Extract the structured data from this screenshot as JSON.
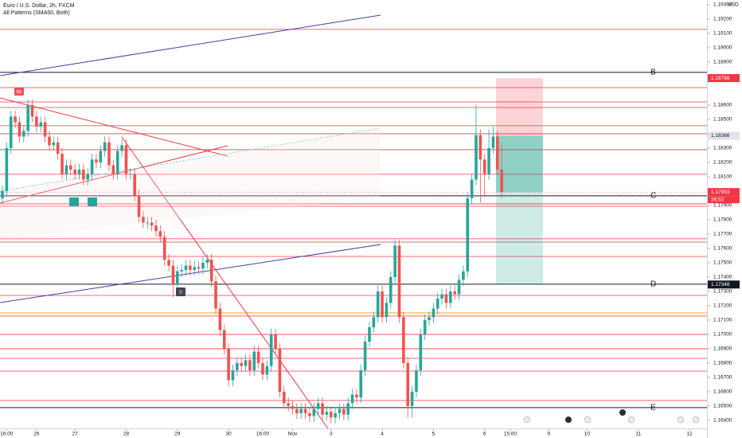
{
  "chart_data": {
    "type": "candlestick",
    "title": "Euro / U.S. Dollar, 2h, FXCM",
    "subtitle": "All Patterns (SMA50, Both)",
    "y_unit": "USD",
    "up_color": "#26a69a",
    "down_color": "#ef5350",
    "open": [
      1.1795,
      1.18,
      1.183,
      1.1852,
      1.1848,
      1.1838,
      1.1842,
      1.186,
      1.1852,
      1.1845,
      1.1848,
      1.1838,
      1.1832,
      1.1834,
      1.1826,
      1.1812,
      1.1818,
      1.1815,
      1.1812,
      1.1815,
      1.1808,
      1.1812,
      1.1822,
      1.182,
      1.1828,
      1.1834,
      1.1818,
      1.1812,
      1.1828,
      1.1832,
      1.1812,
      1.1812,
      1.1797,
      1.1782,
      1.1778,
      1.1778,
      1.1776,
      1.1772,
      1.1768,
      1.1752,
      1.1748,
      1.1735,
      1.1744,
      1.1745,
      1.1748,
      1.1745,
      1.1747,
      1.1746,
      1.175,
      1.1752,
      1.1737,
      1.1718,
      1.1703,
      1.169,
      1.1668,
      1.1675,
      1.168,
      1.1678,
      1.1682,
      1.1675,
      1.1688,
      1.168,
      1.1672,
      1.1678,
      1.17,
      1.169,
      1.166,
      1.1652,
      1.165,
      1.1648,
      1.1645,
      1.1648,
      1.1645,
      1.1643,
      1.1648,
      1.1652,
      1.1644,
      1.1646,
      1.1642,
      1.1645,
      1.1648,
      1.1644,
      1.1652,
      1.1658,
      1.1656,
      1.1675,
      1.1695,
      1.1705,
      1.1712,
      1.173,
      1.1712,
      1.1722,
      1.174,
      1.1762,
      1.1712,
      1.168,
      1.165,
      1.166,
      1.1675,
      1.17,
      1.171,
      1.1712,
      1.1718,
      1.1725,
      1.1728,
      1.1722,
      1.173,
      1.1728,
      1.1738,
      1.1744,
      1.1795,
      1.1808,
      1.1839,
      1.1822,
      1.1812,
      1.183,
      1.1838,
      1.1815
    ],
    "high": [
      1.1804,
      1.1834,
      1.1856,
      1.1856,
      1.1852,
      1.1846,
      1.1864,
      1.1864,
      1.1856,
      1.1852,
      1.1852,
      1.1842,
      1.1838,
      1.1838,
      1.183,
      1.1822,
      1.1822,
      1.1819,
      1.1819,
      1.1819,
      1.1816,
      1.1826,
      1.1826,
      1.1832,
      1.1838,
      1.1838,
      1.1822,
      1.1832,
      1.1836,
      1.1836,
      1.1816,
      1.1816,
      1.1801,
      1.1786,
      1.1782,
      1.1782,
      1.178,
      1.1776,
      1.1772,
      1.1756,
      1.1752,
      1.1748,
      1.1749,
      1.1752,
      1.1752,
      1.1751,
      1.1751,
      1.1754,
      1.1756,
      1.1756,
      1.1741,
      1.1722,
      1.1707,
      1.1694,
      1.1679,
      1.1684,
      1.1684,
      1.1686,
      1.1686,
      1.1692,
      1.1692,
      1.1684,
      1.1682,
      1.1704,
      1.1704,
      1.1694,
      1.1664,
      1.1656,
      1.1654,
      1.1652,
      1.1652,
      1.1652,
      1.1649,
      1.1652,
      1.1656,
      1.1656,
      1.165,
      1.165,
      1.1649,
      1.1652,
      1.1652,
      1.1656,
      1.1662,
      1.1662,
      1.1679,
      1.1699,
      1.1709,
      1.1716,
      1.1734,
      1.1734,
      1.1726,
      1.1744,
      1.1766,
      1.1766,
      1.1716,
      1.1684,
      1.1664,
      1.1679,
      1.1704,
      1.1714,
      1.1716,
      1.1722,
      1.1729,
      1.1732,
      1.1732,
      1.1734,
      1.1734,
      1.1742,
      1.1748,
      1.1799,
      1.1812,
      1.186,
      1.1843,
      1.1826,
      1.1843,
      1.1845,
      1.1842,
      1.1834
    ],
    "low": [
      1.1791,
      1.1796,
      1.1826,
      1.1844,
      1.1834,
      1.1834,
      1.1838,
      1.1848,
      1.1841,
      1.1841,
      1.1834,
      1.1828,
      1.1828,
      1.1822,
      1.1808,
      1.1808,
      1.1811,
      1.1808,
      1.1808,
      1.1804,
      1.1804,
      1.1808,
      1.1816,
      1.1816,
      1.1824,
      1.1814,
      1.1808,
      1.1808,
      1.1824,
      1.1808,
      1.1808,
      1.1793,
      1.1778,
      1.1774,
      1.1774,
      1.1772,
      1.1768,
      1.1764,
      1.1748,
      1.1744,
      1.1726,
      1.1731,
      1.174,
      1.1741,
      1.1741,
      1.1741,
      1.1742,
      1.1742,
      1.1746,
      1.1733,
      1.1714,
      1.1699,
      1.1686,
      1.1664,
      1.1664,
      1.1671,
      1.1674,
      1.1674,
      1.1671,
      1.1671,
      1.1676,
      1.1668,
      1.1668,
      1.1674,
      1.1686,
      1.1656,
      1.1648,
      1.1646,
      1.1644,
      1.1641,
      1.1641,
      1.1641,
      1.1639,
      1.1639,
      1.1644,
      1.164,
      1.164,
      1.1638,
      1.1638,
      1.1641,
      1.164,
      1.164,
      1.1648,
      1.1652,
      1.1652,
      1.1671,
      1.1691,
      1.1701,
      1.1708,
      1.1708,
      1.1708,
      1.1718,
      1.1736,
      1.1708,
      1.1676,
      1.1642,
      1.1642,
      1.1656,
      1.1671,
      1.1696,
      1.1706,
      1.1708,
      1.1714,
      1.1721,
      1.1718,
      1.1718,
      1.1724,
      1.1724,
      1.1734,
      1.174,
      1.1791,
      1.1804,
      1.1792,
      1.1796,
      1.1808,
      1.1826,
      1.1811,
      1.1795
    ],
    "close": [
      1.18,
      1.183,
      1.1852,
      1.1848,
      1.1838,
      1.1842,
      1.186,
      1.1852,
      1.1845,
      1.1848,
      1.1838,
      1.1832,
      1.1834,
      1.1826,
      1.1812,
      1.1818,
      1.1815,
      1.1812,
      1.1815,
      1.1808,
      1.1812,
      1.1822,
      1.182,
      1.1828,
      1.1834,
      1.1818,
      1.1812,
      1.1828,
      1.1832,
      1.1812,
      1.1812,
      1.1797,
      1.1782,
      1.1778,
      1.1778,
      1.1776,
      1.1772,
      1.1768,
      1.1752,
      1.1748,
      1.1735,
      1.1744,
      1.1745,
      1.1748,
      1.1745,
      1.1747,
      1.1746,
      1.175,
      1.1752,
      1.1737,
      1.1718,
      1.1703,
      1.169,
      1.1668,
      1.1675,
      1.168,
      1.1678,
      1.1682,
      1.1675,
      1.1688,
      1.168,
      1.1672,
      1.1678,
      1.17,
      1.169,
      1.166,
      1.1652,
      1.165,
      1.1648,
      1.1645,
      1.1648,
      1.1645,
      1.1643,
      1.1648,
      1.1652,
      1.1644,
      1.1646,
      1.1642,
      1.1645,
      1.1648,
      1.1644,
      1.1652,
      1.1658,
      1.1656,
      1.1675,
      1.1695,
      1.1705,
      1.1712,
      1.173,
      1.1712,
      1.1722,
      1.174,
      1.1762,
      1.1712,
      1.168,
      1.165,
      1.166,
      1.1675,
      1.17,
      1.171,
      1.1712,
      1.1718,
      1.1725,
      1.1728,
      1.1722,
      1.173,
      1.1728,
      1.1738,
      1.1744,
      1.1795,
      1.1808,
      1.1839,
      1.1822,
      1.1812,
      1.183,
      1.1838,
      1.1815,
      1.17993
    ],
    "xlim": [
      -0.56,
      165.1
    ],
    "xticks": [
      {
        "value": 1,
        "label": "16:00"
      },
      {
        "value": 8,
        "label": "26"
      },
      {
        "value": 17,
        "label": "27"
      },
      {
        "value": 29,
        "label": "28"
      },
      {
        "value": 41,
        "label": "29"
      },
      {
        "value": 53,
        "label": "30"
      },
      {
        "value": 61,
        "label": "16:00"
      },
      {
        "value": 68,
        "label": "Nov"
      },
      {
        "value": 77,
        "label": "3"
      },
      {
        "value": 89,
        "label": "4"
      },
      {
        "value": 101,
        "label": "5"
      },
      {
        "value": 113,
        "label": "6"
      },
      {
        "value": 119,
        "label": "15:00"
      },
      {
        "value": 128,
        "label": "9"
      },
      {
        "value": 137,
        "label": "10"
      },
      {
        "value": 149,
        "label": "11"
      },
      {
        "value": 161,
        "label": "12"
      }
    ],
    "ylim": [
      1.16344,
      1.19333
    ],
    "yticks": [
      {
        "value": 1.193,
        "label": "1.19300"
      },
      {
        "value": 1.192,
        "label": "1.19200"
      },
      {
        "value": 1.191,
        "label": "1.19100"
      },
      {
        "value": 1.19,
        "label": "1.19000"
      },
      {
        "value": 1.189,
        "label": "1.18900"
      },
      {
        "value": 1.186,
        "label": "1.18600"
      },
      {
        "value": 1.185,
        "label": "1.18500"
      },
      {
        "value": 1.183,
        "label": "1.18300"
      },
      {
        "value": 1.182,
        "label": "1.18200"
      },
      {
        "value": 1.181,
        "label": "1.18100"
      },
      {
        "value": 1.179,
        "label": "1.17900"
      },
      {
        "value": 1.178,
        "label": "1.17800"
      },
      {
        "value": 1.177,
        "label": "1.17700"
      },
      {
        "value": 1.176,
        "label": "1.17600"
      },
      {
        "value": 1.175,
        "label": "1.17500"
      },
      {
        "value": 1.174,
        "label": "1.17400"
      },
      {
        "value": 1.173,
        "label": "1.17300"
      },
      {
        "value": 1.172,
        "label": "1.17200"
      },
      {
        "value": 1.171,
        "label": "1.17100"
      },
      {
        "value": 1.17,
        "label": "1.17000"
      },
      {
        "value": 1.169,
        "label": "1.16900"
      },
      {
        "value": 1.168,
        "label": "1.16800"
      },
      {
        "value": 1.167,
        "label": "1.16700"
      },
      {
        "value": 1.166,
        "label": "1.16600"
      },
      {
        "value": 1.165,
        "label": "1.16500"
      },
      {
        "value": 1.164,
        "label": "1.16400"
      }
    ],
    "levels": [
      {
        "value": 1.19128,
        "color": "#f23645"
      },
      {
        "value": 1.18722,
        "color": "#f23645"
      },
      {
        "value": 1.18622,
        "color": "#f23645"
      },
      {
        "value": 1.18583,
        "color": "#f23645"
      },
      {
        "value": 1.18456,
        "color": "#f23645"
      },
      {
        "value": 1.184,
        "color": "#f23645"
      },
      {
        "value": 1.18289,
        "color": "#f23645"
      },
      {
        "value": 1.18117,
        "color": "#f23645"
      },
      {
        "value": 1.17911,
        "color": "#f23645"
      },
      {
        "value": 1.17894,
        "color": "#f23645"
      },
      {
        "value": 1.17667,
        "color": "#f23645"
      },
      {
        "value": 1.17644,
        "color": "#f23645"
      },
      {
        "value": 1.17544,
        "color": "#f23645"
      },
      {
        "value": 1.17272,
        "color": "#f23645"
      },
      {
        "value": 1.1715,
        "color": "#ff9800"
      },
      {
        "value": 1.17128,
        "color": "#f23645"
      },
      {
        "value": 1.17,
        "color": "#f23645"
      },
      {
        "value": 1.169,
        "color": "#f23645"
      },
      {
        "value": 1.16833,
        "color": "#f23645"
      },
      {
        "value": 1.16744,
        "color": "#f23645"
      },
      {
        "value": 1.16539,
        "color": "#f23645"
      }
    ],
    "key_levels": [
      {
        "label": "B",
        "value": 1.18828
      },
      {
        "label": "C",
        "value": 1.17967
      },
      {
        "label": "D",
        "value": 1.1735
      },
      {
        "label": "E",
        "value": 1.16489
      }
    ],
    "position": {
      "stop": 1.18788,
      "entry": 1.18386,
      "target": 1.17348
    },
    "last_price": 1.17993,
    "countdown": "36:52",
    "annotations": [
      "BE",
      "D"
    ]
  }
}
